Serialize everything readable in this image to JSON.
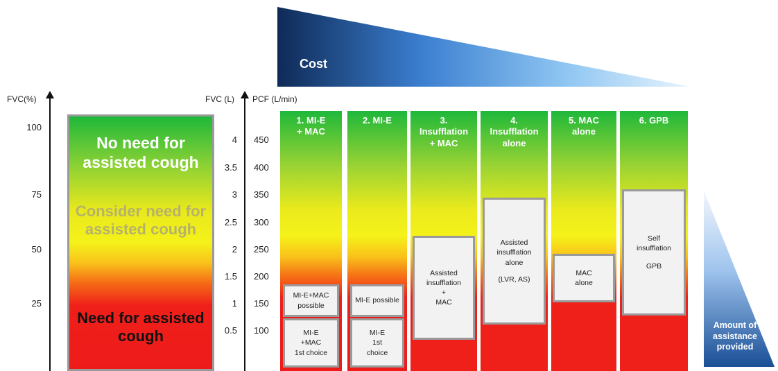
{
  "cost": {
    "label": "Cost"
  },
  "amount": {
    "label": "Amount of assistance provided"
  },
  "axes": {
    "fvc_pct_title": "FVC(%)",
    "fvc_l_title": "FVC (L)",
    "pcf_title": "PCF (L/min)",
    "fvc_pct_ticks": [
      "100",
      "75",
      "50",
      "25"
    ],
    "fvc_l_ticks": [
      "4",
      "3.5",
      "3",
      "2.5",
      "2",
      "1.5",
      "1",
      "0.5"
    ],
    "pcf_ticks": [
      "450",
      "400",
      "350",
      "300",
      "250",
      "200",
      "150",
      "100"
    ]
  },
  "zones": {
    "no_need": "No need for assisted cough",
    "consider": "Consider need for assisted cough",
    "need": "Need for assisted cough"
  },
  "columns": [
    {
      "title_line1": "1. MI-E",
      "title_line2": "+ MAC",
      "box_a": "MI-E+MAC possible",
      "box_b_line1": "MI-E",
      "box_b_line2": "+MAC",
      "box_b_line3": "1st choice"
    },
    {
      "title_line1": "2. MI-E",
      "title_line2": "",
      "box_a": "MI-E possible",
      "box_b_line1": "MI-E",
      "box_b_line2": "1st",
      "box_b_line3": "choice"
    },
    {
      "title_line1": "3.",
      "title_line2": "Insufflation",
      "title_line3": "+ MAC",
      "box_line1": "Assisted",
      "box_line2": "insufflation",
      "box_line3": "+",
      "box_line4": "MAC"
    },
    {
      "title_line1": "4.",
      "title_line2": "Insufflation",
      "title_line3": "alone",
      "box_line1": "Assisted",
      "box_line2": "insufflation",
      "box_line3": "alone",
      "box_line4": "(LVR, AS)"
    },
    {
      "title_line1": "5. MAC",
      "title_line2": "alone",
      "box_line1": "MAC",
      "box_line2": "alone"
    },
    {
      "title_line1": "6. GPB",
      "title_line2": "",
      "box_line1": "Self",
      "box_line2": "insufflation",
      "box_line3": "GPB"
    }
  ],
  "colors": {
    "cost_dark": "#0f2a57",
    "cost_light": "#d6ecfb",
    "green": "#1eb83a",
    "yellow": "#f5f21a",
    "red": "#ef1f1a"
  }
}
